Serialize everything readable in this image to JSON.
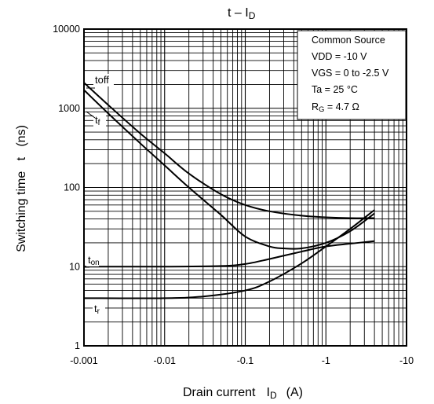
{
  "chart_data": {
    "type": "line",
    "title": "t – I",
    "title_sub": "D",
    "xlabel": "Drain current",
    "xlabel_symbol": "I",
    "xlabel_sub": "D",
    "xlabel_unit": "(A)",
    "ylabel": "Switching time   t   (ns)",
    "x_scale": "log",
    "y_scale": "log",
    "x_abs_range": [
      0.001,
      10
    ],
    "y_range": [
      1,
      10000
    ],
    "x_ticks": [
      "-0.001",
      "-0.01",
      "-0.1",
      "-1",
      "-10"
    ],
    "y_ticks": [
      "1",
      "10",
      "100",
      "1000",
      "10000"
    ],
    "grid": true,
    "conditions_box": {
      "placement": "top-right",
      "lines": [
        {
          "text": "Common Source"
        },
        {
          "text": "VDD = -10 V"
        },
        {
          "text": "VGS = 0 to -2.5 V"
        },
        {
          "text": "Ta = 25 °C"
        },
        {
          "text": "R",
          "sub": "G",
          "rest": " = 4.7 Ω"
        }
      ]
    },
    "series": [
      {
        "name": "toff",
        "label_main": "t",
        "label_sub": "off",
        "x": [
          -0.001,
          -0.002,
          -0.005,
          -0.01,
          -0.02,
          -0.05,
          -0.1,
          -0.2,
          -0.5,
          -1,
          -2,
          -4
        ],
        "y": [
          2100,
          1100,
          480,
          270,
          150,
          82,
          60,
          50,
          44,
          42,
          41,
          41
        ]
      },
      {
        "name": "tf",
        "label_main": "t",
        "label_sub": "f",
        "x": [
          -0.001,
          -0.002,
          -0.005,
          -0.01,
          -0.02,
          -0.05,
          -0.1,
          -0.2,
          -0.3,
          -0.5,
          -1,
          -2,
          -4
        ],
        "y": [
          1700,
          860,
          360,
          190,
          100,
          45,
          24,
          18,
          17,
          17,
          20,
          28,
          47
        ]
      },
      {
        "name": "ton",
        "label_main": "t",
        "label_sub": "on",
        "x": [
          -0.001,
          -0.01,
          -0.05,
          -0.1,
          -0.2,
          -0.5,
          -1,
          -2,
          -4
        ],
        "y": [
          10,
          10,
          10.2,
          10.8,
          12.5,
          15.5,
          18,
          19.5,
          21
        ]
      },
      {
        "name": "tr",
        "label_main": "t",
        "label_sub": "r",
        "x": [
          -0.001,
          -0.01,
          -0.03,
          -0.1,
          -0.2,
          -0.5,
          -1,
          -2,
          -4
        ],
        "y": [
          4,
          4,
          4.2,
          5,
          6.5,
          11,
          18,
          30,
          52
        ]
      }
    ]
  }
}
